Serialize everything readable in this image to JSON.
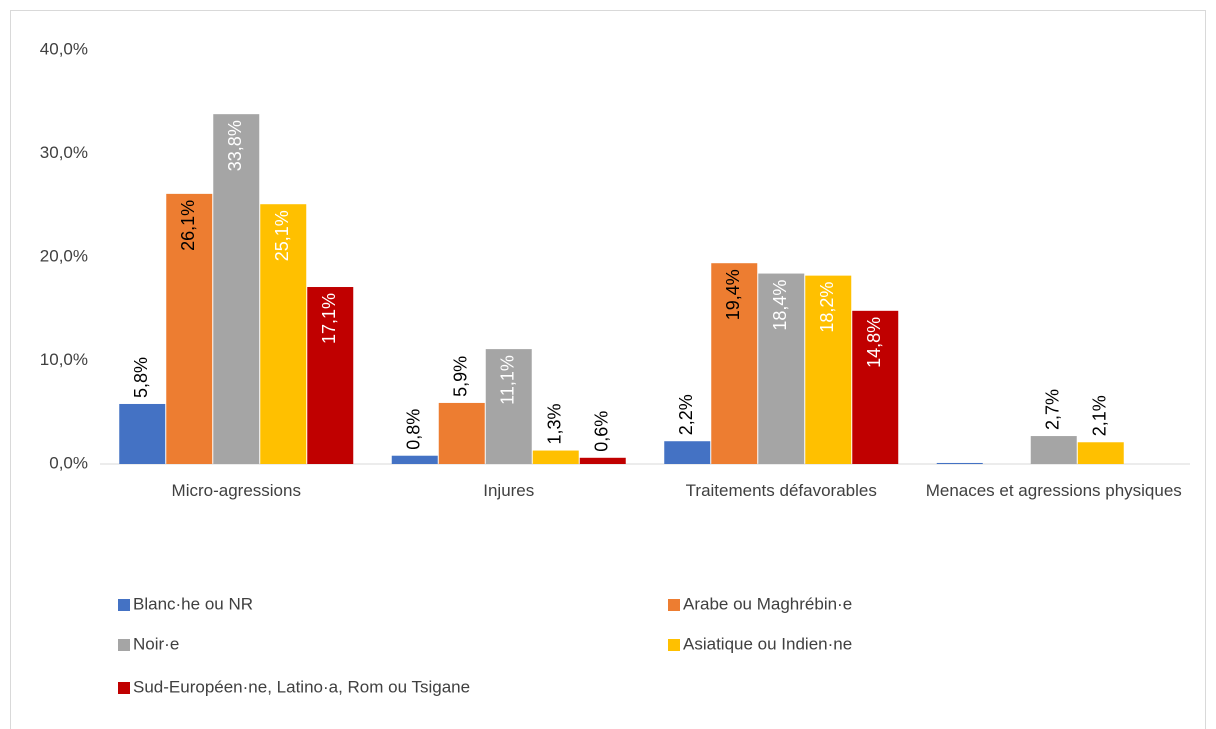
{
  "chart_data": {
    "type": "bar",
    "categories": [
      "Micro-agressions",
      "Injures",
      "Traitements défavorables",
      "Menaces et agressions physiques"
    ],
    "series": [
      {
        "name": "Blanc·he ou NR",
        "color": "#4472c4",
        "values": [
          5.8,
          0.8,
          2.2,
          0.1
        ],
        "value_labels": [
          "5,8%",
          "0,8%",
          "2,2%",
          null
        ]
      },
      {
        "name": "Arabe ou Maghrébin·e",
        "color": "#ed7d31",
        "values": [
          26.1,
          5.9,
          19.4,
          0
        ],
        "value_labels": [
          "26,1%",
          "5,9%",
          "19,4%",
          null
        ]
      },
      {
        "name": "Noir·e",
        "color": "#a5a5a5",
        "values": [
          33.8,
          11.1,
          18.4,
          2.7
        ],
        "value_labels": [
          "33,8%",
          "11,1%",
          "18,4%",
          "2,7%"
        ]
      },
      {
        "name": "Asiatique ou Indien·ne",
        "color": "#ffc000",
        "values": [
          25.1,
          1.3,
          18.2,
          2.1
        ],
        "value_labels": [
          "25,1%",
          "1,3%",
          "18,2%",
          "2,1%"
        ]
      },
      {
        "name": "Sud-Européen·ne, Latino·a, Rom ou Tsigane",
        "color": "#c00000",
        "values": [
          17.1,
          0.6,
          14.8,
          0
        ],
        "value_labels": [
          "17,1%",
          "0,6%",
          "14,8%",
          null
        ]
      }
    ],
    "ylim": [
      0,
      40
    ],
    "yticks": [
      {
        "value": 0,
        "label": "0,0%"
      },
      {
        "value": 10,
        "label": "10,0%"
      },
      {
        "value": 20,
        "label": "20,0%"
      },
      {
        "value": 30,
        "label": "30,0%"
      },
      {
        "value": 40,
        "label": "40,0%"
      }
    ],
    "grid": false,
    "legend": "bottom"
  }
}
